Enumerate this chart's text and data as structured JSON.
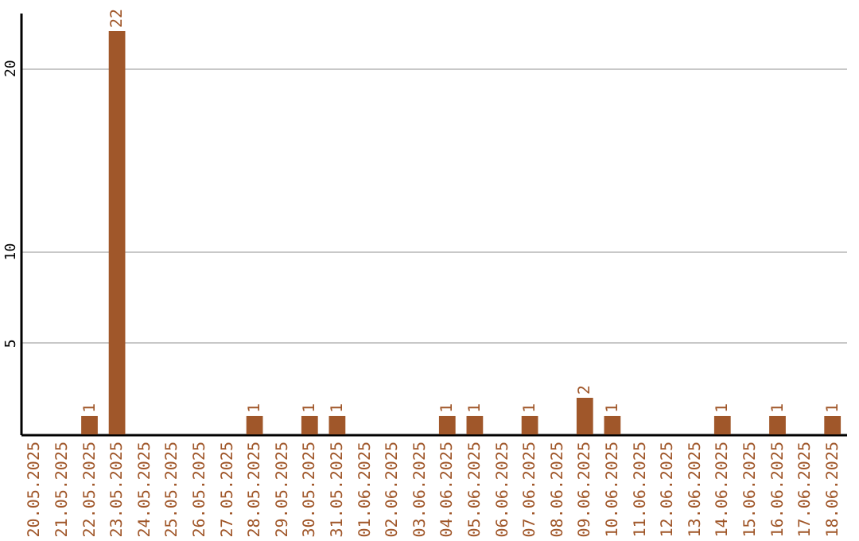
{
  "chart_data": {
    "type": "bar",
    "categories": [
      "20.05.2025",
      "21.05.2025",
      "22.05.2025",
      "23.05.2025",
      "24.05.2025",
      "25.05.2025",
      "26.05.2025",
      "27.05.2025",
      "28.05.2025",
      "29.05.2025",
      "30.05.2025",
      "31.05.2025",
      "01.06.2025",
      "02.06.2025",
      "03.06.2025",
      "04.06.2025",
      "05.06.2025",
      "06.06.2025",
      "07.06.2025",
      "08.06.2025",
      "09.06.2025",
      "10.06.2025",
      "11.06.2025",
      "12.06.2025",
      "13.06.2025",
      "14.06.2025",
      "15.06.2025",
      "16.06.2025",
      "17.06.2025",
      "18.06.2025"
    ],
    "values": [
      0,
      0,
      1,
      22,
      0,
      0,
      0,
      0,
      1,
      0,
      1,
      1,
      0,
      0,
      0,
      1,
      1,
      0,
      1,
      0,
      2,
      1,
      0,
      0,
      0,
      1,
      0,
      1,
      0,
      1
    ],
    "value_labels": [
      null,
      null,
      "1",
      "22",
      null,
      null,
      null,
      null,
      "1",
      null,
      "1",
      "1",
      null,
      null,
      null,
      "1",
      "1",
      null,
      "1",
      null,
      "2",
      "1",
      null,
      null,
      null,
      "1",
      null,
      "1",
      null,
      "1"
    ],
    "color": "#a0572a",
    "ylim": [
      0,
      23
    ],
    "yticks": [
      5,
      10,
      20
    ],
    "grid": "y"
  }
}
